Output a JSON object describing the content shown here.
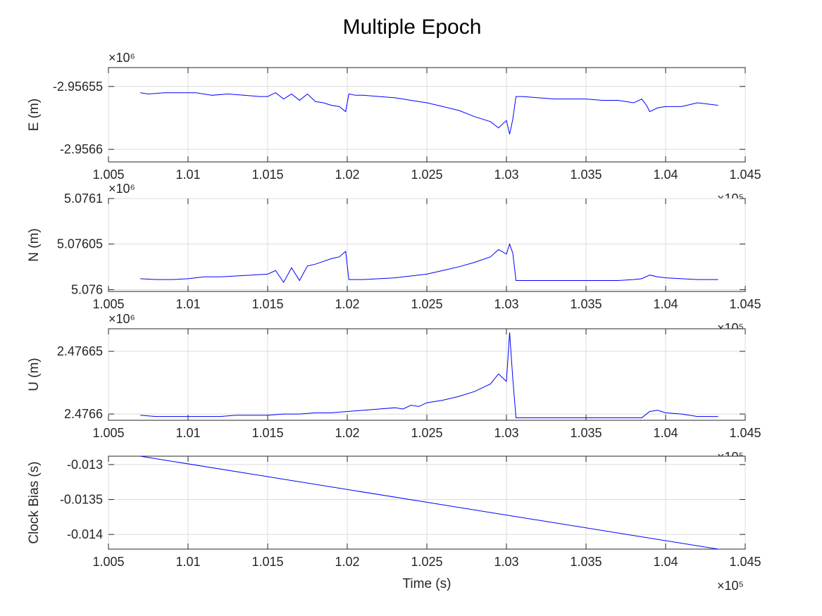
{
  "figure": {
    "title": "Multiple Epoch",
    "background": "#ffffff",
    "line_color": "#0000ff"
  },
  "chart_data": [
    {
      "type": "line",
      "ylabel": "E (m)",
      "xlabel": "",
      "exponent_label": "×10⁶",
      "x_exponent_label": "×10⁵",
      "xlim": [
        1.005,
        1.045
      ],
      "ylim": [
        -2.95661,
        -2.956535
      ],
      "xticks": [
        1.005,
        1.01,
        1.015,
        1.02,
        1.025,
        1.03,
        1.035,
        1.04,
        1.045
      ],
      "xtick_labels": [
        "1.005",
        "1.01",
        "1.015",
        "1.02",
        "1.025",
        "1.03",
        "1.035",
        "1.04",
        "1.045"
      ],
      "yticks": [
        -2.95655,
        -2.9566
      ],
      "ytick_labels": [
        "-2.95655",
        "-2.9566"
      ],
      "grid": true,
      "series": [
        {
          "x": [
            1.007,
            1.0075,
            1.0085,
            1.0095,
            1.0105,
            1.0115,
            1.0125,
            1.0135,
            1.0145,
            1.015,
            1.0155,
            1.016,
            1.0165,
            1.017,
            1.0175,
            1.018,
            1.0185,
            1.019,
            1.0195,
            1.0199,
            1.0201,
            1.0205,
            1.021,
            1.022,
            1.023,
            1.024,
            1.025,
            1.026,
            1.027,
            1.028,
            1.029,
            1.0295,
            1.03,
            1.0302,
            1.0304,
            1.0306,
            1.031,
            1.032,
            1.033,
            1.034,
            1.035,
            1.036,
            1.037,
            1.038,
            1.0385,
            1.0388,
            1.039,
            1.0395,
            1.04,
            1.041,
            1.042,
            1.0433
          ],
          "y": [
            -2.956555,
            -2.956556,
            -2.956555,
            -2.956555,
            -2.956555,
            -2.956557,
            -2.956556,
            -2.956557,
            -2.956558,
            -2.956558,
            -2.956555,
            -2.95656,
            -2.956556,
            -2.956561,
            -2.956556,
            -2.956562,
            -2.956563,
            -2.956565,
            -2.956566,
            -2.95657,
            -2.956556,
            -2.956557,
            -2.956557,
            -2.956558,
            -2.956559,
            -2.956561,
            -2.956563,
            -2.956566,
            -2.956569,
            -2.956574,
            -2.956578,
            -2.956583,
            -2.956577,
            -2.956588,
            -2.956576,
            -2.956558,
            -2.956558,
            -2.956559,
            -2.95656,
            -2.95656,
            -2.95656,
            -2.956561,
            -2.956561,
            -2.956563,
            -2.95656,
            -2.956565,
            -2.95657,
            -2.956567,
            -2.956566,
            -2.956566,
            -2.956563,
            -2.956565
          ]
        }
      ]
    },
    {
      "type": "line",
      "ylabel": "N (m)",
      "xlabel": "",
      "exponent_label": "×10⁶",
      "x_exponent_label": "×10⁵",
      "xlim": [
        1.005,
        1.045
      ],
      "ylim": [
        5.075998,
        5.0761
      ],
      "xticks": [
        1.005,
        1.01,
        1.015,
        1.02,
        1.025,
        1.03,
        1.035,
        1.04,
        1.045
      ],
      "xtick_labels": [
        "1.005",
        "1.01",
        "1.015",
        "1.02",
        "1.025",
        "1.03",
        "1.035",
        "1.04",
        "1.045"
      ],
      "yticks": [
        5.0761,
        5.07605,
        5.076
      ],
      "ytick_labels": [
        "5.0761",
        "5.07605",
        "5.076"
      ],
      "grid": true,
      "series": [
        {
          "x": [
            1.007,
            1.008,
            1.009,
            1.01,
            1.011,
            1.012,
            1.013,
            1.014,
            1.015,
            1.0155,
            1.016,
            1.0165,
            1.017,
            1.0175,
            1.018,
            1.0185,
            1.019,
            1.0195,
            1.0199,
            1.0201,
            1.021,
            1.022,
            1.023,
            1.024,
            1.025,
            1.026,
            1.027,
            1.028,
            1.029,
            1.0295,
            1.03,
            1.0302,
            1.0304,
            1.0306,
            1.031,
            1.032,
            1.033,
            1.034,
            1.035,
            1.036,
            1.037,
            1.038,
            1.0385,
            1.039,
            1.0395,
            1.04,
            1.041,
            1.042,
            1.0433
          ],
          "y": [
            5.076012,
            5.076011,
            5.076011,
            5.076012,
            5.076014,
            5.076014,
            5.076015,
            5.076016,
            5.076017,
            5.076021,
            5.076008,
            5.076024,
            5.07601,
            5.076026,
            5.076028,
            5.076031,
            5.076034,
            5.076036,
            5.076042,
            5.076011,
            5.076011,
            5.076012,
            5.076013,
            5.076015,
            5.076017,
            5.076021,
            5.076025,
            5.07603,
            5.076036,
            5.076044,
            5.076039,
            5.07605,
            5.07604,
            5.07601,
            5.07601,
            5.07601,
            5.07601,
            5.07601,
            5.07601,
            5.07601,
            5.07601,
            5.076011,
            5.076012,
            5.076016,
            5.076014,
            5.076013,
            5.076012,
            5.076011,
            5.076011
          ]
        }
      ]
    },
    {
      "type": "line",
      "ylabel": "U (m)",
      "xlabel": "",
      "exponent_label": "×10⁶",
      "x_exponent_label": "×10⁵",
      "xlim": [
        1.005,
        1.045
      ],
      "ylim": [
        2.476595,
        2.476668
      ],
      "xticks": [
        1.005,
        1.01,
        1.015,
        1.02,
        1.025,
        1.03,
        1.035,
        1.04,
        1.045
      ],
      "xtick_labels": [
        "1.005",
        "1.01",
        "1.015",
        "1.02",
        "1.025",
        "1.03",
        "1.035",
        "1.04",
        "1.045"
      ],
      "yticks": [
        2.47665,
        2.4766
      ],
      "ytick_labels": [
        "2.47665",
        "2.4766"
      ],
      "grid": true,
      "series": [
        {
          "x": [
            1.007,
            1.008,
            1.009,
            1.01,
            1.011,
            1.012,
            1.013,
            1.014,
            1.015,
            1.016,
            1.017,
            1.018,
            1.019,
            1.02,
            1.021,
            1.022,
            1.023,
            1.0235,
            1.024,
            1.0245,
            1.025,
            1.026,
            1.027,
            1.028,
            1.029,
            1.0295,
            1.03,
            1.0302,
            1.0304,
            1.0306,
            1.031,
            1.032,
            1.033,
            1.034,
            1.035,
            1.036,
            1.037,
            1.038,
            1.0385,
            1.039,
            1.0395,
            1.04,
            1.041,
            1.042,
            1.0433
          ],
          "y": [
            2.476599,
            2.476598,
            2.476598,
            2.476598,
            2.476598,
            2.476598,
            2.476599,
            2.476599,
            2.476599,
            2.4766,
            2.4766,
            2.476601,
            2.476601,
            2.476602,
            2.476603,
            2.476604,
            2.476605,
            2.476604,
            2.476607,
            2.476606,
            2.476609,
            2.476611,
            2.476614,
            2.476618,
            2.476624,
            2.476632,
            2.476626,
            2.476665,
            2.476628,
            2.476597,
            2.476597,
            2.476597,
            2.476597,
            2.476597,
            2.476597,
            2.476597,
            2.476597,
            2.476597,
            2.476597,
            2.476602,
            2.476603,
            2.476601,
            2.4766,
            2.476598,
            2.476598
          ]
        }
      ]
    },
    {
      "type": "line",
      "ylabel": "Clock Bias (s)",
      "xlabel": "Time (s)",
      "exponent_label": "",
      "x_exponent_label": "×10⁵",
      "xlim": [
        1.005,
        1.045
      ],
      "ylim": [
        -0.01421,
        -0.01288
      ],
      "xticks": [
        1.005,
        1.01,
        1.015,
        1.02,
        1.025,
        1.03,
        1.035,
        1.04,
        1.045
      ],
      "xtick_labels": [
        "1.005",
        "1.01",
        "1.015",
        "1.02",
        "1.025",
        "1.03",
        "1.035",
        "1.04",
        "1.045"
      ],
      "yticks": [
        -0.013,
        -0.0135,
        -0.014
      ],
      "ytick_labels": [
        "-0.013",
        "-0.0135",
        "-0.014"
      ],
      "grid": true,
      "series": [
        {
          "x": [
            1.007,
            1.0433
          ],
          "y": [
            -0.01288,
            -0.01421
          ]
        }
      ]
    }
  ]
}
